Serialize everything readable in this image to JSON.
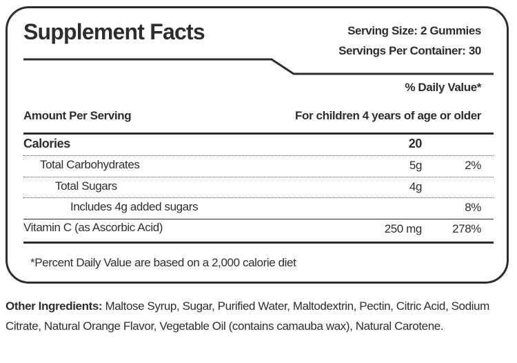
{
  "title": "Supplement Facts",
  "serving_size": "Serving Size: 2 Gummies",
  "servings_per_container": "Servings Per Container: 30",
  "daily_value_header": "% Daily Value*",
  "amount_per_serving": "Amount Per Serving",
  "audience": "For children 4 years of age or older",
  "rows": [
    {
      "name": "Calories",
      "amount": "20",
      "dv": ""
    },
    {
      "name": "Total Carbohydrates",
      "amount": "5g",
      "dv": "2%"
    },
    {
      "name": "Total Sugars",
      "amount": "4g",
      "dv": ""
    },
    {
      "name": "Includes 4g added sugars",
      "amount": "",
      "dv": "8%"
    },
    {
      "name": "Vitamin C (as Ascorbic Acid)",
      "amount": "250 mg",
      "dv": "278%"
    }
  ],
  "footnote": "*Percent Daily Value are based on a 2,000 calorie diet",
  "other_ingredients_label": "Other Ingredients:",
  "other_ingredients": "Maltose Syrup, Sugar, Purified Water, Maltodextrin, Pectin, Citric Acid, Sodium Citrate, Natural Orange Flavor, Vegetable Oil (contains camauba wax), Natural Carotene."
}
